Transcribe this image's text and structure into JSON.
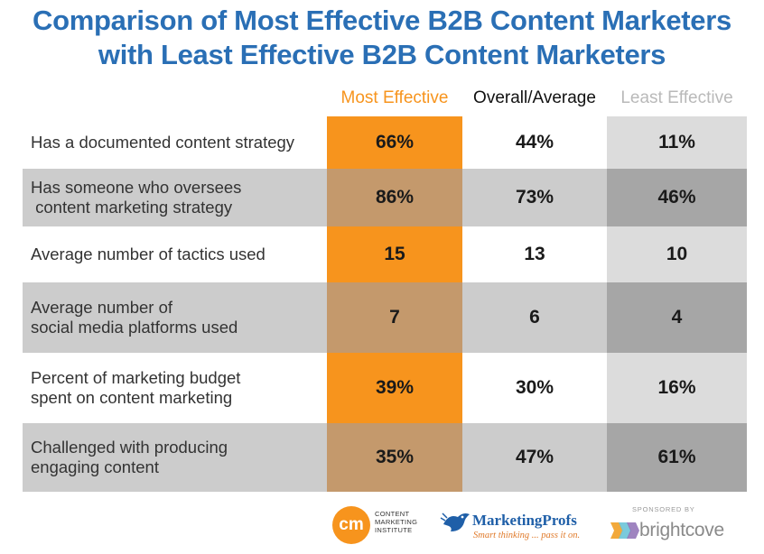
{
  "title": {
    "line1": "Comparison of Most Effective B2B Content Marketers",
    "line2": "with Least Effective B2B Content Marketers"
  },
  "columns": {
    "most": "Most Effective",
    "average": "Overall/Average",
    "least": "Least Effective"
  },
  "rows": [
    {
      "label": "Has a documented content strategy",
      "most": "66%",
      "average": "44%",
      "least": "11%"
    },
    {
      "label": "Has someone who oversees\n content marketing strategy",
      "most": "86%",
      "average": "73%",
      "least": "46%"
    },
    {
      "label": "Average number of tactics used",
      "most": "15",
      "average": "13",
      "least": "10"
    },
    {
      "label": "Average number of\nsocial media platforms used",
      "most": "7",
      "average": "6",
      "least": "4"
    },
    {
      "label": "Percent of marketing budget\nspent on content marketing",
      "most": "39%",
      "average": "30%",
      "least": "16%"
    },
    {
      "label": "Challenged with producing\nengaging content",
      "most": "35%",
      "average": "47%",
      "least": "61%"
    }
  ],
  "logos": {
    "cmi_mark": "cm",
    "cmi_text": "CONTENT\nMARKETING\nINSTITUTE",
    "mp_name": "MarketingProfs",
    "mp_tagline": "Smart thinking ... pass it on.",
    "sponsored_by": "SPONSORED BY",
    "brightcove": "brightcove"
  },
  "colors": {
    "title": "#2a6fb5",
    "most_effective": "#f7941d",
    "most_effective_shaded": "#c4996c",
    "least_effective_header": "#b9b9b9"
  }
}
